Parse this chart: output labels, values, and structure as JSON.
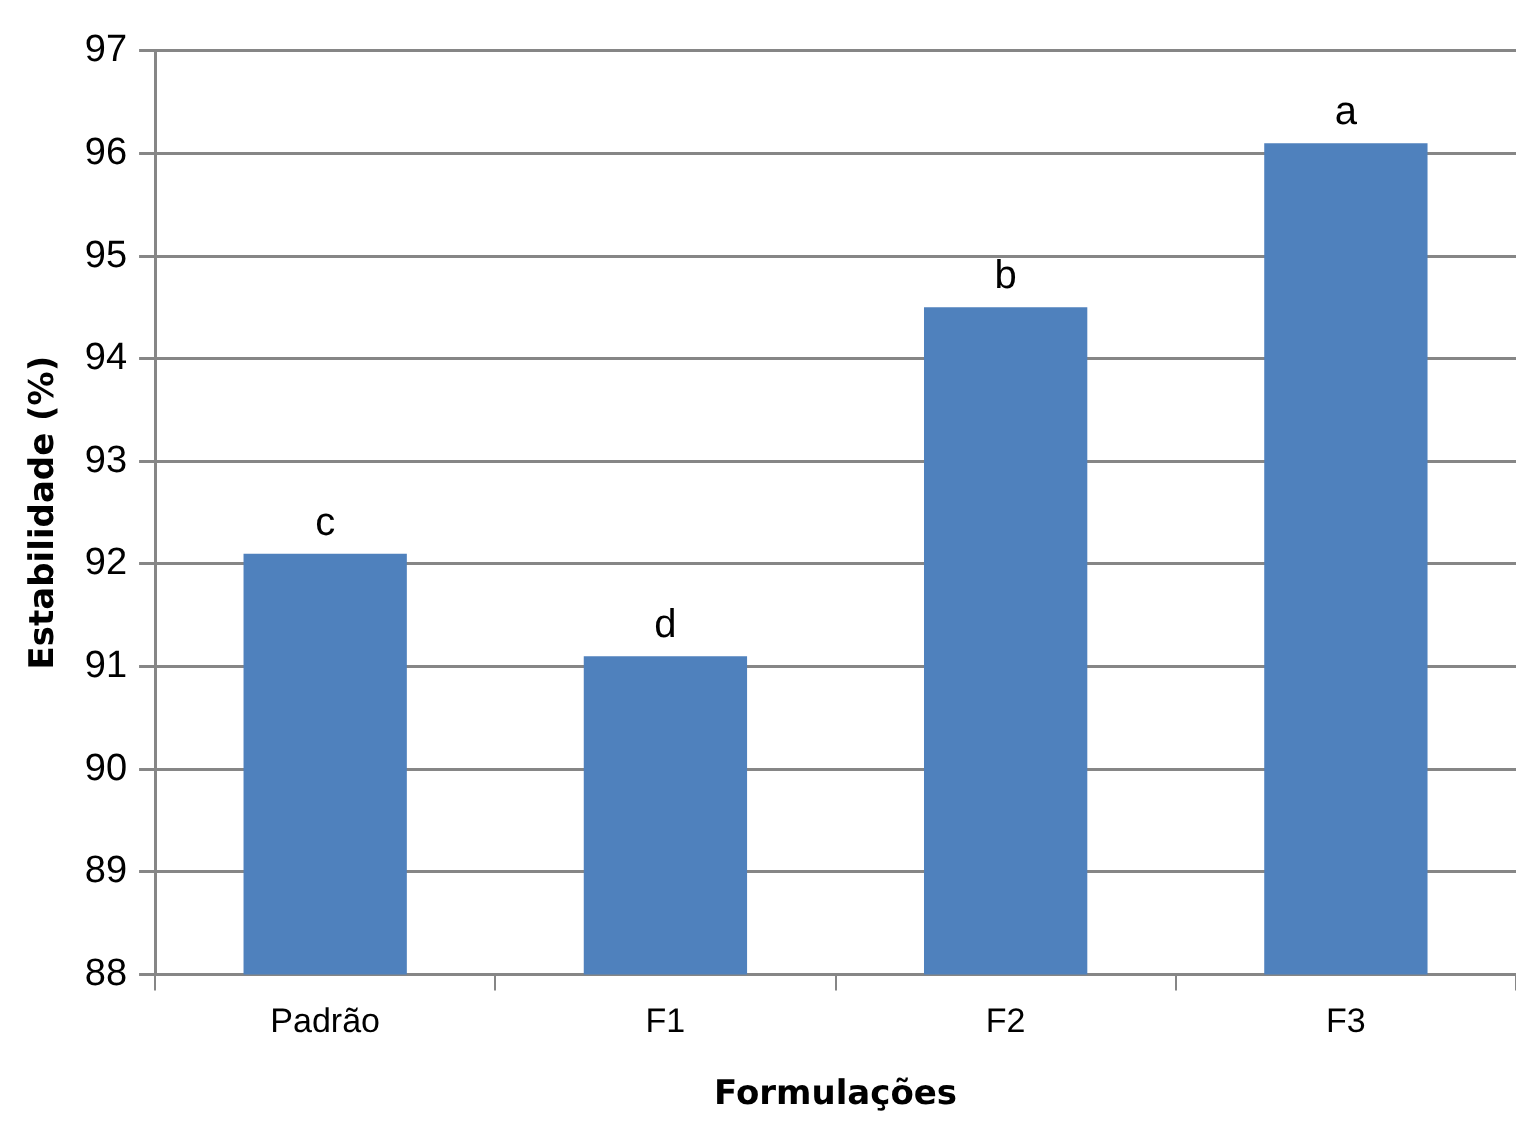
{
  "chart_data": {
    "type": "bar",
    "xlabel": "Formulações",
    "ylabel": "Estabilidade (%)",
    "categories": [
      "Padrão",
      "F1",
      "F2",
      "F3"
    ],
    "values": [
      92.1,
      91.1,
      94.5,
      96.1
    ],
    "color": "#4f81bd",
    "ylim": [
      88,
      97
    ],
    "yticks": [
      88,
      89,
      90,
      91,
      92,
      93,
      94,
      95,
      96,
      97
    ],
    "grid": "y",
    "annotations": [
      {
        "text": "c",
        "x": "Padrão",
        "y": 92.1
      },
      {
        "text": "d",
        "x": "F1",
        "y": 91.1
      },
      {
        "text": "b",
        "x": "F2",
        "y": 94.5
      },
      {
        "text": "a",
        "x": "F3",
        "y": 96.1
      }
    ]
  }
}
